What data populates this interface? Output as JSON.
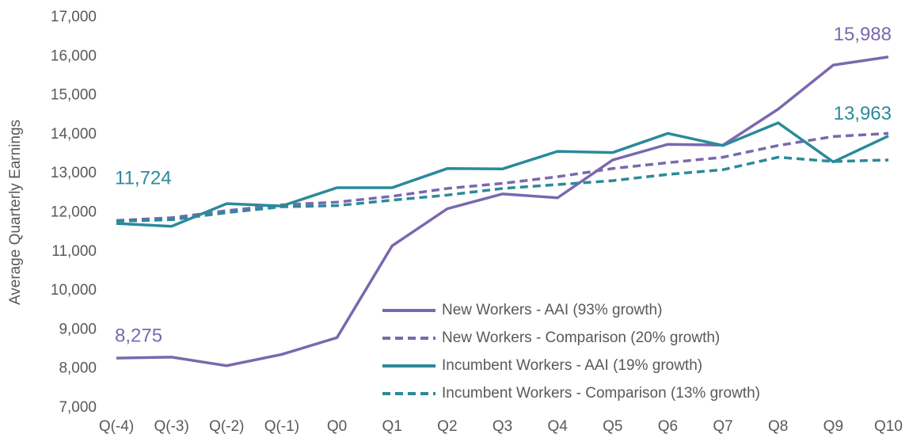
{
  "chart_data": {
    "type": "line",
    "y_label": "Average Quarterly Earnings",
    "categories": [
      "Q(-4)",
      "Q(-3)",
      "Q(-2)",
      "Q(-1)",
      "Q0",
      "Q1",
      "Q2",
      "Q3",
      "Q4",
      "Q5",
      "Q6",
      "Q7",
      "Q8",
      "Q9",
      "Q10"
    ],
    "ylim": [
      7000,
      17000
    ],
    "yticks": [
      {
        "value": 7000,
        "label": "7,000"
      },
      {
        "value": 8000,
        "label": "8,000"
      },
      {
        "value": 9000,
        "label": "9,000"
      },
      {
        "value": 10000,
        "label": "10,000"
      },
      {
        "value": 11000,
        "label": "11,000"
      },
      {
        "value": 12000,
        "label": "12,000"
      },
      {
        "value": 13000,
        "label": "13,000"
      },
      {
        "value": 14000,
        "label": "14,000"
      },
      {
        "value": 15000,
        "label": "15,000"
      },
      {
        "value": 16000,
        "label": "16,000"
      },
      {
        "value": 17000,
        "label": "17,000"
      }
    ],
    "series": [
      {
        "name": "New Workers - AAI (93% growth)",
        "color": "#7b68ae",
        "dashed": false,
        "values": [
          8275,
          8300,
          8080,
          8370,
          8800,
          11150,
          12100,
          12480,
          12380,
          13350,
          13750,
          13730,
          14650,
          15780,
          15988
        ],
        "value_labels": [
          "8,275",
          null,
          null,
          null,
          null,
          null,
          null,
          null,
          null,
          null,
          null,
          null,
          null,
          null,
          "15,988"
        ]
      },
      {
        "name": "New Workers - Comparison (20% growth)",
        "color": "#7b68ae",
        "dashed": true,
        "values": [
          11800,
          11870,
          12050,
          12200,
          12270,
          12420,
          12620,
          12750,
          12920,
          13130,
          13280,
          13420,
          13720,
          13950,
          14030
        ]
      },
      {
        "name": "Incumbent Workers - AAI (19% growth)",
        "color": "#2b8a9a",
        "dashed": false,
        "values": [
          11724,
          11650,
          12230,
          12170,
          12640,
          12640,
          13130,
          13120,
          13570,
          13540,
          14030,
          13720,
          14300,
          13300,
          13963
        ],
        "value_labels": [
          "11,724",
          null,
          null,
          null,
          null,
          null,
          null,
          null,
          null,
          null,
          null,
          null,
          null,
          null,
          "13,963"
        ]
      },
      {
        "name": "Incumbent Workers - Comparison (13% growth)",
        "color": "#2b8a9a",
        "dashed": true,
        "values": [
          11780,
          11820,
          12000,
          12150,
          12180,
          12320,
          12450,
          12620,
          12720,
          12820,
          12980,
          13100,
          13420,
          13310,
          13350
        ]
      }
    ]
  }
}
